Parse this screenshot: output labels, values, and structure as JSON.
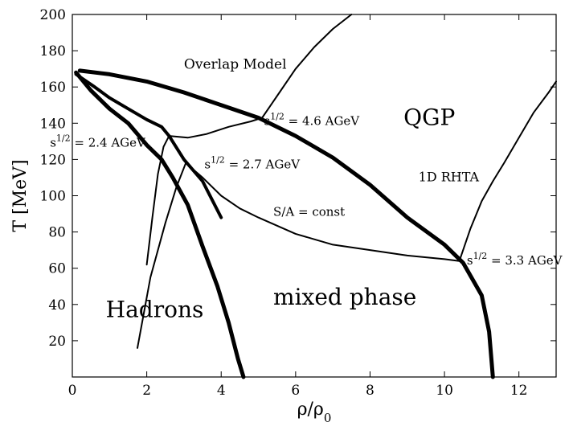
{
  "chart_data": {
    "type": "line",
    "title": "",
    "xlabel": "ρ/ρ",
    "xlabel_sub": "0",
    "ylabel": "T [MeV]",
    "xlim": [
      0,
      13
    ],
    "ylim": [
      0,
      200
    ],
    "xticks": [
      "0",
      "2",
      "4",
      "6",
      "8",
      "10",
      "12"
    ],
    "yticks": [
      "20",
      "40",
      "60",
      "80",
      "100",
      "120",
      "140",
      "160",
      "180",
      "200"
    ],
    "grid": false,
    "legend": "none",
    "series": [
      {
        "x": [
          0.1,
          0.5,
          1.0,
          1.5,
          2.0,
          2.4,
          2.7,
          3.1,
          3.5,
          3.9,
          4.2,
          4.45,
          4.6
        ],
        "y": [
          168,
          158,
          148,
          140,
          128,
          120,
          110,
          95,
          72,
          50,
          30,
          10,
          0
        ],
        "stroke_width": 5
      },
      {
        "x": [
          0.2,
          1.0,
          2.0,
          3.0,
          4.0,
          5.0,
          6.0,
          7.0,
          8.0,
          9.0,
          10.0,
          10.5,
          11.0,
          11.2,
          11.3
        ],
        "y": [
          169,
          167,
          163,
          157,
          150,
          143,
          133,
          121,
          106,
          88,
          73,
          63,
          45,
          25,
          0
        ],
        "stroke_width": 5
      },
      {
        "x": [
          0.1,
          0.6,
          1.0,
          1.5,
          2.0,
          2.4,
          2.6
        ],
        "y": [
          167,
          160,
          154,
          148,
          142,
          138,
          133
        ],
        "stroke_width": 4
      },
      {
        "x": [
          2.6,
          3.0,
          3.5,
          4.0
        ],
        "y": [
          133,
          120,
          108,
          88
        ],
        "stroke_width": 4
      },
      {
        "x": [
          2.6,
          3.1,
          3.6,
          4.2,
          4.8,
          5.1,
          5.5,
          6.0,
          6.5,
          7.0,
          7.5
        ],
        "y": [
          133,
          132,
          134,
          138,
          141,
          143,
          155,
          170,
          182,
          192,
          200
        ],
        "stroke_width": 2
      },
      {
        "x": [
          2.0,
          2.15,
          2.3,
          2.45,
          2.6
        ],
        "y": [
          62,
          88,
          112,
          127,
          133
        ],
        "stroke_width": 2
      },
      {
        "x": [
          1.75,
          2.1,
          2.5,
          2.8,
          3.05
        ],
        "y": [
          16,
          55,
          85,
          105,
          118
        ],
        "stroke_width": 2
      },
      {
        "x": [
          3.05,
          3.5,
          4.0,
          4.5,
          5.0,
          6.0,
          7.0,
          8.0,
          9.0,
          10.0,
          10.4
        ],
        "y": [
          118,
          110,
          100,
          93,
          88,
          79,
          73,
          70,
          67,
          65,
          64
        ],
        "stroke_width": 2
      },
      {
        "x": [
          10.4,
          10.7,
          11.0,
          11.3,
          11.6,
          12.0,
          12.4,
          12.8,
          13.0
        ],
        "y": [
          64,
          82,
          97,
          108,
          118,
          132,
          146,
          157,
          163
        ],
        "stroke_width": 2
      }
    ],
    "annotations": [
      {
        "text": "Overlap Model",
        "x": 3.0,
        "y": 170,
        "size": 17
      },
      {
        "text": "QGP",
        "x": 8.9,
        "y": 139,
        "size": 28
      },
      {
        "text": "1D RHTA",
        "x": 9.3,
        "y": 108,
        "size": 16
      },
      {
        "text": "S/A = const",
        "x": 5.4,
        "y": 89,
        "size": 15
      },
      {
        "text": "Hadrons",
        "x": 0.9,
        "y": 33,
        "size": 28
      },
      {
        "text": "mixed phase",
        "x": 5.4,
        "y": 40,
        "size": 28
      },
      {
        "text": "s",
        "sup": "1/2",
        "rest": " = 4.6 AGeV",
        "x": 5.15,
        "y": 139,
        "size": 15
      },
      {
        "text": "s",
        "sup": "1/2",
        "rest": " = 2.4 AGeV",
        "x": -0.6,
        "y": 127,
        "size": 15
      },
      {
        "text": "s",
        "sup": "1/2",
        "rest": " = 2.7 AGeV",
        "x": 3.55,
        "y": 115,
        "size": 15
      },
      {
        "text": "s",
        "sup": "1/2",
        "rest": " = 3.3 AGeV",
        "x": 10.6,
        "y": 62,
        "size": 15
      }
    ]
  }
}
